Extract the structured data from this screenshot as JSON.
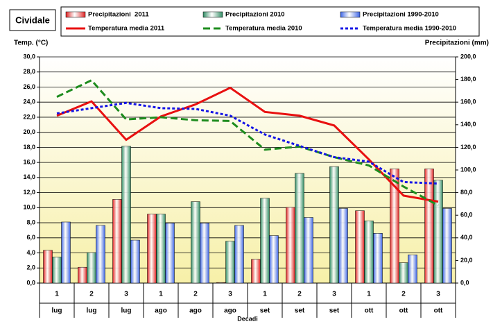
{
  "chart_data": {
    "type": "bar",
    "title": "Cividale",
    "y_label": "Temp. (°C)",
    "y2_label": "Precipitazioni (mm)",
    "x_label": "Decadi",
    "categories": [
      "1",
      "2",
      "3",
      "1",
      "2",
      "3",
      "1",
      "2",
      "3",
      "1",
      "2",
      "3"
    ],
    "groups": [
      "lug",
      "lug",
      "lug",
      "ago",
      "ago",
      "ago",
      "set",
      "set",
      "set",
      "ott",
      "ott",
      "ott"
    ],
    "ylim": [
      0,
      30
    ],
    "yticks": [
      {
        "value": 0,
        "label": "0,0"
      },
      {
        "value": 2,
        "label": "2,0"
      },
      {
        "value": 4,
        "label": "4,0"
      },
      {
        "value": 6,
        "label": "6,0"
      },
      {
        "value": 8,
        "label": "8,0"
      },
      {
        "value": 10,
        "label": "10,0"
      },
      {
        "value": 12,
        "label": "12,0"
      },
      {
        "value": 14,
        "label": "14,0"
      },
      {
        "value": 16,
        "label": "16,0"
      },
      {
        "value": 18,
        "label": "18,0"
      },
      {
        "value": 20,
        "label": "20,0"
      },
      {
        "value": 22,
        "label": "22,0"
      },
      {
        "value": 24,
        "label": "24,0"
      },
      {
        "value": 26,
        "label": "26,0"
      },
      {
        "value": 28,
        "label": "28,0"
      },
      {
        "value": 30,
        "label": "30,0"
      }
    ],
    "y2lim": [
      0,
      200
    ],
    "y2ticks": [
      {
        "value": 0,
        "label": "0,0"
      },
      {
        "value": 20,
        "label": "20,0"
      },
      {
        "value": 40,
        "label": "40,0"
      },
      {
        "value": 60,
        "label": "60,0"
      },
      {
        "value": 80,
        "label": "80,0"
      },
      {
        "value": 100,
        "label": "100,0"
      },
      {
        "value": 120,
        "label": "120,0"
      },
      {
        "value": 140,
        "label": "140,0"
      },
      {
        "value": 160,
        "label": "160,0"
      },
      {
        "value": 180,
        "label": "180,0"
      },
      {
        "value": 200,
        "label": "200,0"
      }
    ],
    "grid": true,
    "series": [
      {
        "name": "Precipitazioni  2011",
        "type": "bar",
        "axis": "y2",
        "color": "#e02020",
        "values": [
          29,
          14,
          74,
          61,
          0,
          0.5,
          21,
          67,
          0,
          64,
          101,
          101
        ]
      },
      {
        "name": "Precipitazioni 2010",
        "type": "bar",
        "axis": "y2",
        "color": "#2e8b62",
        "values": [
          23,
          27,
          121,
          61,
          72,
          37,
          75,
          97,
          103,
          55,
          18,
          91
        ]
      },
      {
        "name": "Precipitazioni 1990-2010",
        "type": "bar",
        "axis": "y2",
        "color": "#3c64e6",
        "values": [
          54,
          51,
          38,
          53,
          53,
          51,
          42,
          58,
          66,
          44,
          25,
          66
        ]
      },
      {
        "name": "Temperatura media 2011",
        "type": "line",
        "color": "#e81010",
        "dash": "solid",
        "values": [
          22.2,
          24.1,
          19.0,
          22.1,
          23.7,
          25.9,
          22.7,
          22.2,
          20.9,
          16.4,
          11.6,
          10.8
        ]
      },
      {
        "name": "Temperatura media 2010",
        "type": "line",
        "color": "#1e8c1e",
        "dash": "long",
        "values": [
          24.7,
          26.9,
          21.7,
          22.0,
          21.6,
          21.5,
          17.7,
          18.1,
          16.7,
          15.6,
          12.8,
          10.3
        ]
      },
      {
        "name": "Temperatura media 1990-2010",
        "type": "line",
        "color": "#1414e6",
        "dash": "short",
        "values": [
          22.5,
          23.2,
          23.9,
          23.2,
          23.1,
          22.2,
          19.7,
          18.2,
          16.7,
          16.1,
          13.4,
          13.2
        ]
      }
    ]
  }
}
